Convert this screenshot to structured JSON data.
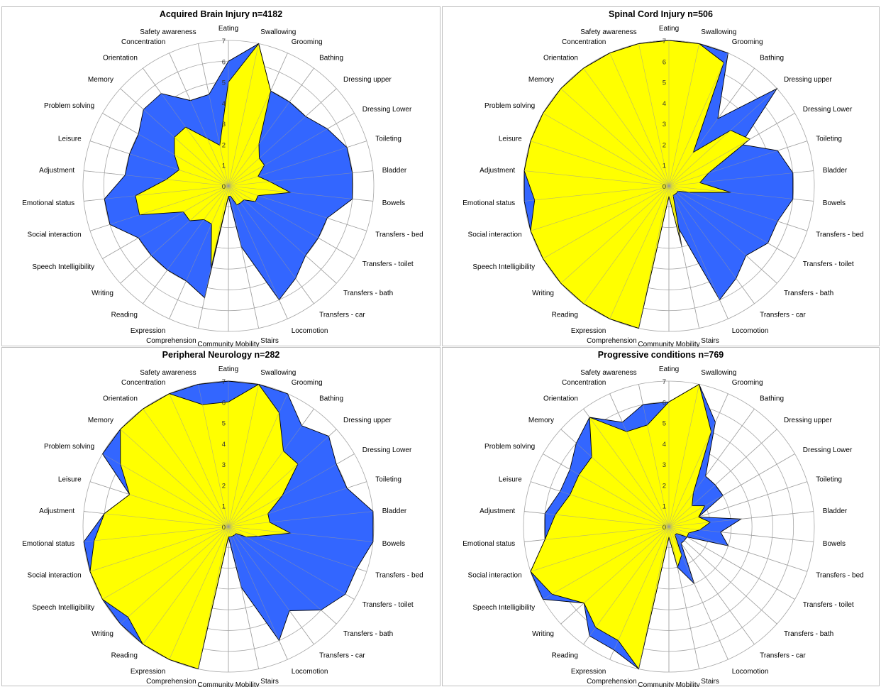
{
  "colors": {
    "admission": "#3366FF",
    "discharge": "#FFFF00",
    "outline": "#000000",
    "grid": "#A6A6A6",
    "panel_border": "#BFBFBF"
  },
  "chart_data": [
    {
      "type": "radar",
      "title": "Acquired Brain Injury n=4182",
      "categories": [
        "Eating",
        "Swallowing",
        "Grooming",
        "Bathing",
        "Dressing upper",
        "Dressing Lower",
        "Toileting",
        "Bladder",
        "Bowels",
        "Transfers - bed",
        "Transfers - toilet",
        "Transfers - bath",
        "Transfers - car",
        "Locomotion",
        "Stairs",
        "Community Mobility",
        "Comprehension",
        "Expression",
        "Reading",
        "Writing",
        "Speech Intelligibility",
        "Social interaction",
        "Emotional status",
        "Adjustment",
        "Leisure",
        "Problem solving",
        "Memory",
        "Orientation",
        "Concentration",
        "Safety awareness"
      ],
      "ylim": [
        0,
        7
      ],
      "ticks": [
        0,
        1,
        2,
        3,
        4,
        5,
        6,
        7
      ],
      "series": [
        {
          "values": [
            6,
            7,
            5,
            5,
            5,
            5.5,
            6,
            6,
            6,
            5,
            5,
            5,
            5.5,
            6,
            3,
            0.5,
            5.5,
            5,
            5,
            5,
            5,
            6,
            6,
            5,
            5,
            5,
            5.5,
            5.5,
            4.5,
            4.5
          ]
        },
        {
          "values": [
            5,
            7,
            5,
            2.5,
            2,
            2,
            1.5,
            2,
            3,
            1.5,
            1.5,
            1,
            1,
            1,
            0.5,
            0.5,
            4,
            2,
            2,
            2.5,
            2.5,
            4.5,
            4.5,
            3,
            2.5,
            3,
            3.5,
            3.5,
            2.5,
            2
          ]
        }
      ]
    },
    {
      "type": "radar",
      "title": "Spinal Cord Injury n=506",
      "categories": [
        "Eating",
        "Swallowing",
        "Grooming",
        "Bathing",
        "Dressing upper",
        "Dressing Lower",
        "Toileting",
        "Bladder",
        "Bowels",
        "Transfers - bed",
        "Transfers - toilet",
        "Transfers - bath",
        "Transfers - car",
        "Locomotion",
        "Stairs",
        "Community Mobility",
        "Comprehension",
        "Expression",
        "Reading",
        "Writing",
        "Speech Intelligibility",
        "Social interaction",
        "Emotional status",
        "Adjustment",
        "Leisure",
        "Problem solving",
        "Memory",
        "Orientation",
        "Concentration",
        "Safety awareness"
      ],
      "ylim": [
        0,
        7
      ],
      "ticks": [
        0,
        1,
        2,
        3,
        4,
        5,
        6,
        7
      ],
      "series": [
        {
          "values": [
            7,
            7,
            7,
            4,
            7,
            4,
            5.5,
            6,
            6,
            5.5,
            5.5,
            5,
            5.5,
            6,
            2,
            0.5,
            7,
            7,
            7,
            7,
            7,
            7,
            7,
            7,
            7,
            7,
            7,
            7,
            7,
            7
          ]
        },
        {
          "values": [
            7,
            7,
            6.5,
            2,
            4,
            4.5,
            2,
            1.5,
            3,
            1,
            0.5,
            0.5,
            0.5,
            0.5,
            3,
            0.5,
            7,
            7,
            7,
            7,
            7,
            7,
            6.5,
            7,
            7,
            7,
            7,
            7,
            7,
            7
          ]
        }
      ]
    },
    {
      "type": "radar",
      "title": "Peripheral Neurology n=282",
      "categories": [
        "Eating",
        "Swallowing",
        "Grooming",
        "Bathing",
        "Dressing upper",
        "Dressing Lower",
        "Toileting",
        "Bladder",
        "Bowels",
        "Transfers - bed",
        "Transfers - toilet",
        "Transfers - bath",
        "Transfers - car",
        "Locomotion",
        "Stairs",
        "Community Mobility",
        "Comprehension",
        "Expression",
        "Reading",
        "Writing",
        "Speech Intelligibility",
        "Social interaction",
        "Emotional status",
        "Adjustment",
        "Leisure",
        "Problem solving",
        "Memory",
        "Orientation",
        "Concentration",
        "Safety awareness"
      ],
      "ylim": [
        0,
        7
      ],
      "ticks": [
        0,
        1,
        2,
        3,
        4,
        5,
        6,
        7
      ],
      "series": [
        {
          "values": [
            7,
            7,
            7,
            6,
            6.5,
            6,
            6,
            7,
            7,
            6.5,
            6.5,
            6,
            5,
            6,
            3,
            0.5,
            7,
            7,
            7,
            7,
            7,
            7,
            7,
            6,
            5,
            7,
            7,
            7,
            7,
            7
          ]
        },
        {
          "values": [
            6,
            7,
            6,
            4.5,
            4.5,
            3,
            2,
            2,
            3,
            1.5,
            1,
            0.5,
            0.5,
            0.5,
            0.5,
            0.5,
            7,
            7,
            7,
            6.5,
            7,
            7,
            6.5,
            6,
            5,
            6,
            7,
            7,
            7,
            6
          ]
        }
      ]
    },
    {
      "type": "radar",
      "title": "Progressive conditions n=769",
      "categories": [
        "Eating",
        "Swallowing",
        "Grooming",
        "Bathing",
        "Dressing upper",
        "Dressing Lower",
        "Toileting",
        "Bladder",
        "Bowels",
        "Transfers - bed",
        "Transfers - toilet",
        "Transfers - bath",
        "Transfers - car",
        "Locomotion",
        "Stairs",
        "Community Mobility",
        "Comprehension",
        "Expression",
        "Reading",
        "Writing",
        "Speech Intelligibility",
        "Social interaction",
        "Emotional status",
        "Adjustment",
        "Leisure",
        "Problem solving",
        "Memory",
        "Orientation",
        "Concentration",
        "Safety awareness"
      ],
      "ylim": [
        0,
        7
      ],
      "ticks": [
        0,
        1,
        2,
        3,
        4,
        5,
        6,
        7
      ],
      "series": [
        {
          "values": [
            6,
            7,
            5.5,
            3,
            3,
            3,
            1.5,
            3.5,
            2.5,
            3,
            1,
            1,
            1,
            3,
            2,
            0.5,
            7,
            6.5,
            6.5,
            5.5,
            7,
            7,
            6,
            6,
            5.5,
            5.5,
            6,
            6.5,
            5.5,
            6
          ]
        },
        {
          "values": [
            6,
            7,
            5,
            2,
            1.5,
            2,
            1.5,
            2,
            1.5,
            1,
            1,
            0.5,
            0.5,
            1.5,
            2,
            0.5,
            7,
            6,
            6,
            5.5,
            6.5,
            7,
            6,
            5.5,
            5,
            5,
            5,
            6.5,
            5,
            5
          ]
        }
      ]
    }
  ]
}
